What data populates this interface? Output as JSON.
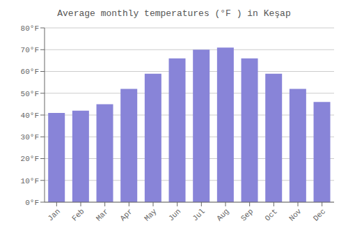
{
  "chart_data": {
    "type": "bar",
    "title": "Average monthly temperatures (°F ) in Keşap",
    "categories": [
      "Jan",
      "Feb",
      "Mar",
      "Apr",
      "May",
      "Jun",
      "Jul",
      "Aug",
      "Sep",
      "Oct",
      "Nov",
      "Dec"
    ],
    "values": [
      41,
      42,
      45,
      52,
      59,
      66,
      70,
      71,
      66,
      59,
      52,
      46
    ],
    "ylim": [
      0,
      80
    ],
    "yticks": [
      {
        "value": 0,
        "label": "0°F"
      },
      {
        "value": 10,
        "label": "10°F"
      },
      {
        "value": 20,
        "label": "20°F"
      },
      {
        "value": 30,
        "label": "30°F"
      },
      {
        "value": 40,
        "label": "40°F"
      },
      {
        "value": 50,
        "label": "50°F"
      },
      {
        "value": 60,
        "label": "60°F"
      },
      {
        "value": 70,
        "label": "70°F"
      },
      {
        "value": 80,
        "label": "80°F"
      }
    ],
    "grid": true
  }
}
